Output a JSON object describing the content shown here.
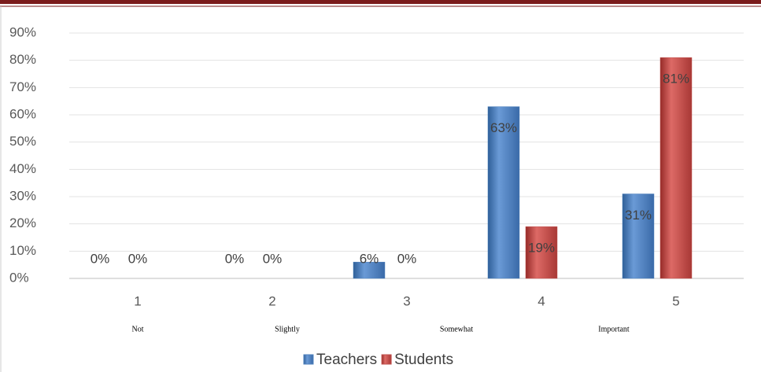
{
  "chart_data": {
    "type": "bar",
    "categories": [
      "1",
      "2",
      "3",
      "4",
      "5"
    ],
    "category_descriptions": [
      "Not",
      "Slightly",
      "Somewhat",
      "Important"
    ],
    "series": [
      {
        "name": "Teachers",
        "color": "#4f81bd",
        "values": [
          0,
          0,
          6,
          63,
          31
        ],
        "value_labels": [
          "0%",
          "0%",
          "6%",
          "63%",
          "31%"
        ]
      },
      {
        "name": "Students",
        "color": "#c0504d",
        "values": [
          0,
          0,
          0,
          19,
          81
        ],
        "value_labels": [
          "0%",
          "0%",
          "0%",
          "19%",
          "81%"
        ]
      }
    ],
    "ylim": [
      0,
      90
    ],
    "yticks": [
      {
        "value": 0,
        "label": "0%"
      },
      {
        "value": 10,
        "label": "10%"
      },
      {
        "value": 20,
        "label": "20%"
      },
      {
        "value": 30,
        "label": "30%"
      },
      {
        "value": 40,
        "label": "40%"
      },
      {
        "value": 50,
        "label": "50%"
      },
      {
        "value": 60,
        "label": "60%"
      },
      {
        "value": 70,
        "label": "70%"
      },
      {
        "value": 80,
        "label": "80%"
      },
      {
        "value": 90,
        "label": "90%"
      }
    ],
    "grid": true,
    "legend": "bottom"
  }
}
